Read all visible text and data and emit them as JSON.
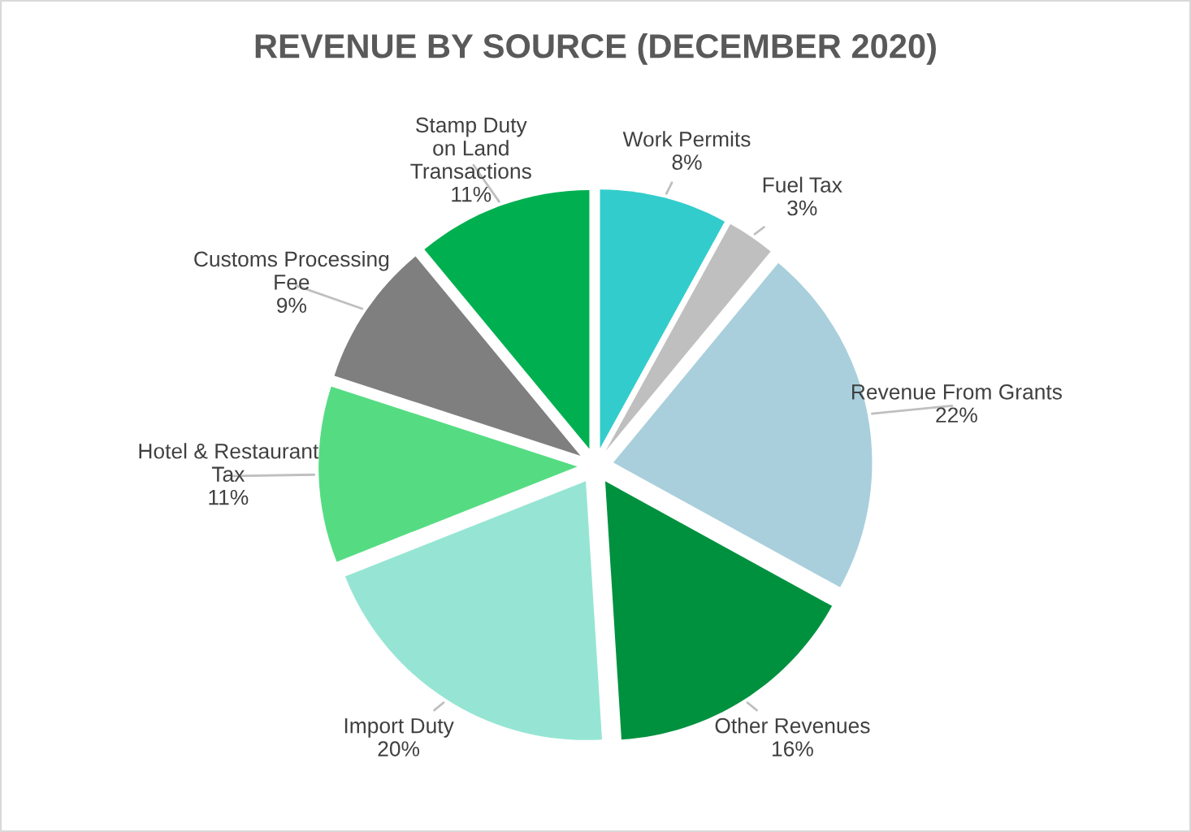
{
  "chart_data": {
    "type": "pie",
    "title": "REVENUE BY SOURCE (DECEMBER 2020)",
    "categories": [
      "Work Permits",
      "Fuel Tax",
      "Revenue From Grants",
      "Other Revenues",
      "Import Duty",
      "Hotel & Restaurant\nTax",
      "Customs Processing\nFee",
      "Stamp Duty\non Land\nTransactions"
    ],
    "values": [
      8,
      3,
      22,
      16,
      20,
      11,
      9,
      11
    ],
    "value_labels": [
      "8%",
      "3%",
      "22%",
      "16%",
      "20%",
      "11%",
      "9%",
      "11%"
    ],
    "colors": [
      "#33cccc",
      "#bfbfbf",
      "#a9cfdc",
      "#00913f",
      "#96e5d4",
      "#55dc82",
      "#7f7f7f",
      "#00b050"
    ],
    "legend": false
  }
}
